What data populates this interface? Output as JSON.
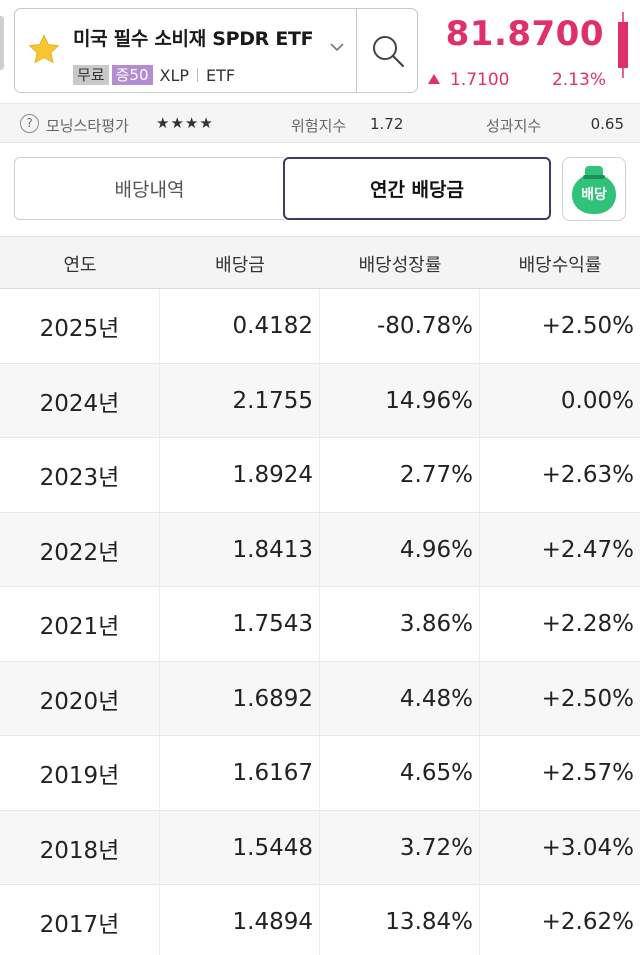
{
  "header": {
    "stock_name": "미국 필수 소비재 SPDR ETF",
    "tags": {
      "free": "무료",
      "margin": "증50"
    },
    "ticker": "XLP",
    "asset_type": "ETF",
    "price": "81.8700",
    "change": "1.7100",
    "change_pct": "2.13%",
    "accent_color": "#e0306a"
  },
  "info_bar": {
    "help": "?",
    "morningstar_label": "모닝스타평가",
    "morningstar_stars": "★★★★",
    "risk_label": "위험지수",
    "risk_value": "1.72",
    "perf_label": "성과지수",
    "perf_value": "0.65"
  },
  "tabs": {
    "history": "배당내역",
    "annual": "연간 배당금",
    "dividend_button": "배당"
  },
  "table": {
    "headers": [
      "연도",
      "배당금",
      "배당성장률",
      "배당수익률"
    ],
    "rows": [
      {
        "year": "2025년",
        "dividend": "0.4182",
        "growth": "-80.78%",
        "growth_type": "neg",
        "yield": "+2.50%",
        "yield_type": "pos"
      },
      {
        "year": "2024년",
        "dividend": "2.1755",
        "growth": "14.96%",
        "growth_type": "pos",
        "yield": "0.00%",
        "yield_type": "zero"
      },
      {
        "year": "2023년",
        "dividend": "1.8924",
        "growth": "2.77%",
        "growth_type": "pos",
        "yield": "+2.63%",
        "yield_type": "pos"
      },
      {
        "year": "2022년",
        "dividend": "1.8413",
        "growth": "4.96%",
        "growth_type": "pos",
        "yield": "+2.47%",
        "yield_type": "pos"
      },
      {
        "year": "2021년",
        "dividend": "1.7543",
        "growth": "3.86%",
        "growth_type": "pos",
        "yield": "+2.28%",
        "yield_type": "pos"
      },
      {
        "year": "2020년",
        "dividend": "1.6892",
        "growth": "4.48%",
        "growth_type": "pos",
        "yield": "+2.50%",
        "yield_type": "pos"
      },
      {
        "year": "2019년",
        "dividend": "1.6167",
        "growth": "4.65%",
        "growth_type": "pos",
        "yield": "+2.57%",
        "yield_type": "pos"
      },
      {
        "year": "2018년",
        "dividend": "1.5448",
        "growth": "3.72%",
        "growth_type": "pos",
        "yield": "+3.04%",
        "yield_type": "pos"
      },
      {
        "year": "2017년",
        "dividend": "1.4894",
        "growth": "13.84%",
        "growth_type": "pos",
        "yield": "+2.62%",
        "yield_type": "pos"
      }
    ]
  }
}
